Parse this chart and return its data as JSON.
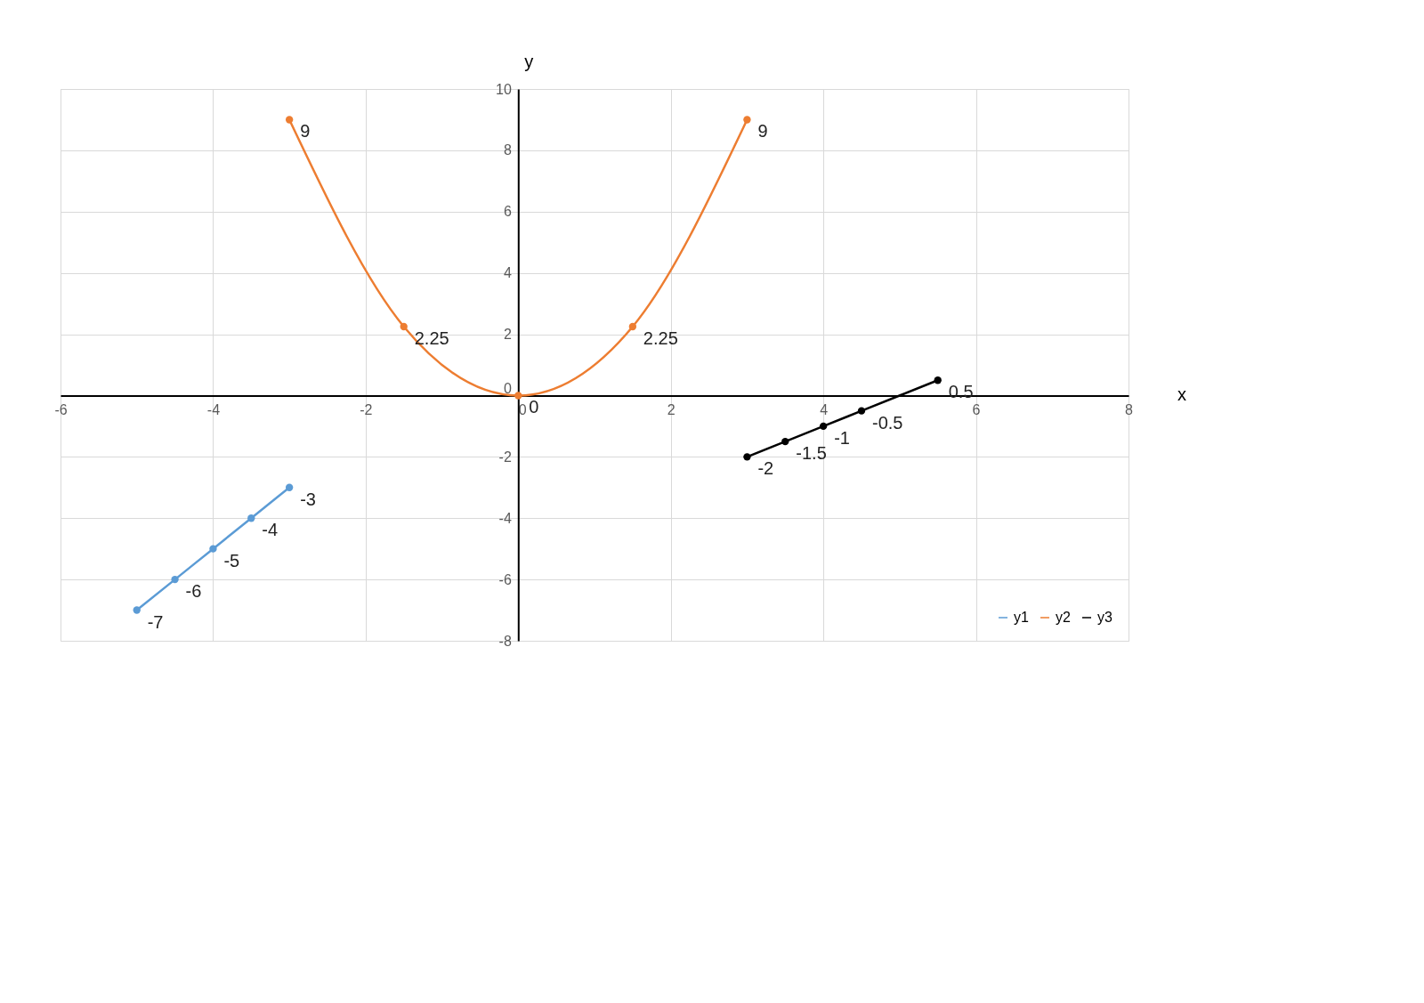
{
  "chart_data": {
    "type": "line",
    "xlabel": "x",
    "ylabel": "y",
    "xlim": [
      -6,
      8
    ],
    "xticks": [
      -6,
      -4,
      -2,
      0,
      2,
      4,
      6,
      8
    ],
    "ylim": [
      -8,
      10
    ],
    "yticks": [
      -8,
      -6,
      -4,
      -2,
      0,
      2,
      4,
      6,
      8,
      10
    ],
    "grid": true,
    "marker": "circle",
    "line_style": "solid",
    "data_labels": true,
    "legend": "bottom right",
    "series": [
      {
        "name": "y1",
        "color": "#5b9bd5",
        "x": [
          -5,
          -4.5,
          -4,
          -3.5,
          -3
        ],
        "values": [
          -7,
          -6,
          -5,
          -4,
          -3
        ]
      },
      {
        "name": "y2",
        "color": "#ed7d31",
        "x": [
          -3,
          -1.5,
          0,
          1.5,
          3
        ],
        "values": [
          9,
          2.25,
          0,
          2.25,
          9
        ]
      },
      {
        "name": "y3",
        "color": "#000000",
        "x": [
          3,
          3.5,
          4,
          4.5,
          5.5
        ],
        "values": [
          -2,
          -1.5,
          -1,
          -0.5,
          0.5
        ]
      }
    ]
  }
}
